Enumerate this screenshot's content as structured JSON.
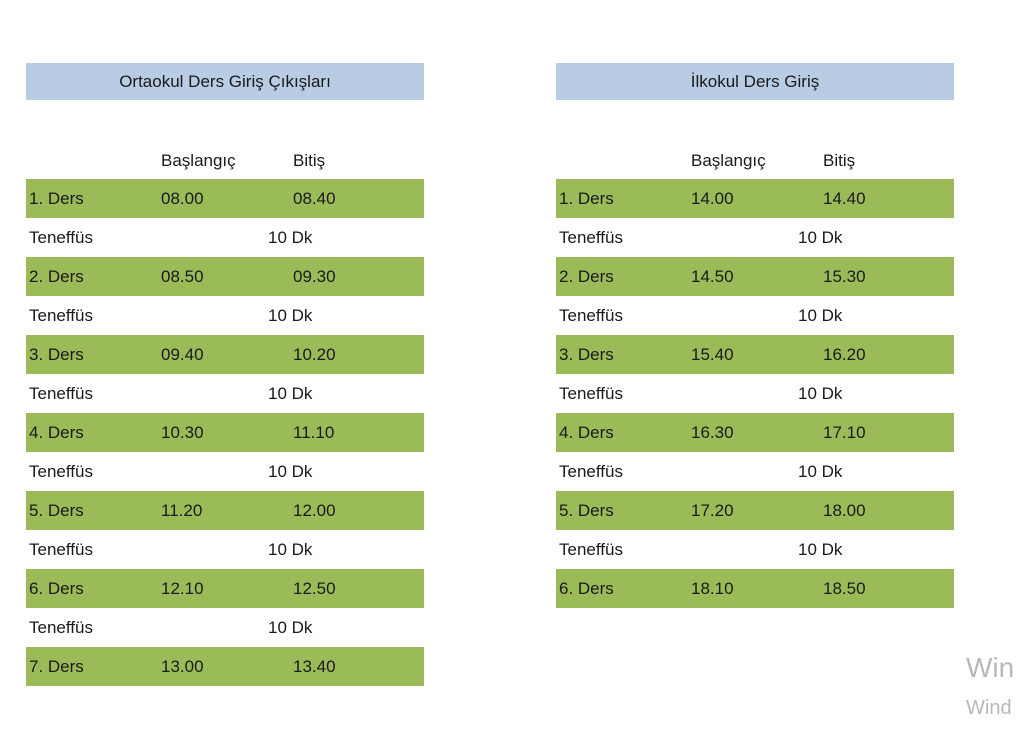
{
  "left": {
    "title": "Ortaokul Ders Giriş Çıkışları",
    "header": {
      "start": "Başlangıç",
      "end": "Bitiş"
    },
    "rows": [
      {
        "type": "lesson",
        "label": "1. Ders",
        "start": "08.00",
        "end": "08.40"
      },
      {
        "type": "break",
        "label": "Teneffüs",
        "duration": "10 Dk"
      },
      {
        "type": "lesson",
        "label": "2. Ders",
        "start": "08.50",
        "end": "09.30"
      },
      {
        "type": "break",
        "label": "Teneffüs",
        "duration": "10 Dk"
      },
      {
        "type": "lesson",
        "label": "3. Ders",
        "start": "09.40",
        "end": "10.20"
      },
      {
        "type": "break",
        "label": "Teneffüs",
        "duration": "10 Dk"
      },
      {
        "type": "lesson",
        "label": "4. Ders",
        "start": "10.30",
        "end": "11.10"
      },
      {
        "type": "break",
        "label": "Teneffüs",
        "duration": "10 Dk"
      },
      {
        "type": "lesson",
        "label": "5. Ders",
        "start": "11.20",
        "end": "12.00"
      },
      {
        "type": "break",
        "label": "Teneffüs",
        "duration": "10 Dk"
      },
      {
        "type": "lesson",
        "label": "6. Ders",
        "start": "12.10",
        "end": "12.50"
      },
      {
        "type": "break",
        "label": "Teneffüs",
        "duration": "10 Dk"
      },
      {
        "type": "lesson",
        "label": "7. Ders",
        "start": "13.00",
        "end": "13.40"
      }
    ]
  },
  "right": {
    "title": "İlkokul Ders Giriş",
    "header": {
      "start": "Başlangıç",
      "end": "Bitiş"
    },
    "rows": [
      {
        "type": "lesson",
        "label": "1. Ders",
        "start": "14.00",
        "end": "14.40"
      },
      {
        "type": "break",
        "label": "Teneffüs",
        "duration": "10 Dk"
      },
      {
        "type": "lesson",
        "label": "2. Ders",
        "start": "14.50",
        "end": "15.30"
      },
      {
        "type": "break",
        "label": "Teneffüs",
        "duration": "10 Dk"
      },
      {
        "type": "lesson",
        "label": "3. Ders",
        "start": "15.40",
        "end": "16.20"
      },
      {
        "type": "break",
        "label": "Teneffüs",
        "duration": "10 Dk"
      },
      {
        "type": "lesson",
        "label": "4. Ders",
        "start": "16.30",
        "end": "17.10"
      },
      {
        "type": "break",
        "label": "Teneffüs",
        "duration": "10 Dk"
      },
      {
        "type": "lesson",
        "label": "5. Ders",
        "start": "17.20",
        "end": "18.00"
      },
      {
        "type": "break",
        "label": "Teneffüs",
        "duration": "10 Dk"
      },
      {
        "type": "lesson",
        "label": "6. Ders",
        "start": "18.10",
        "end": "18.50"
      }
    ]
  },
  "watermark": {
    "line1": "Win",
    "line2": "Wind"
  },
  "colors": {
    "title_bg": "#b8cce4",
    "lesson_bg": "#9bbb59",
    "watermark": "#b8b8b8"
  }
}
